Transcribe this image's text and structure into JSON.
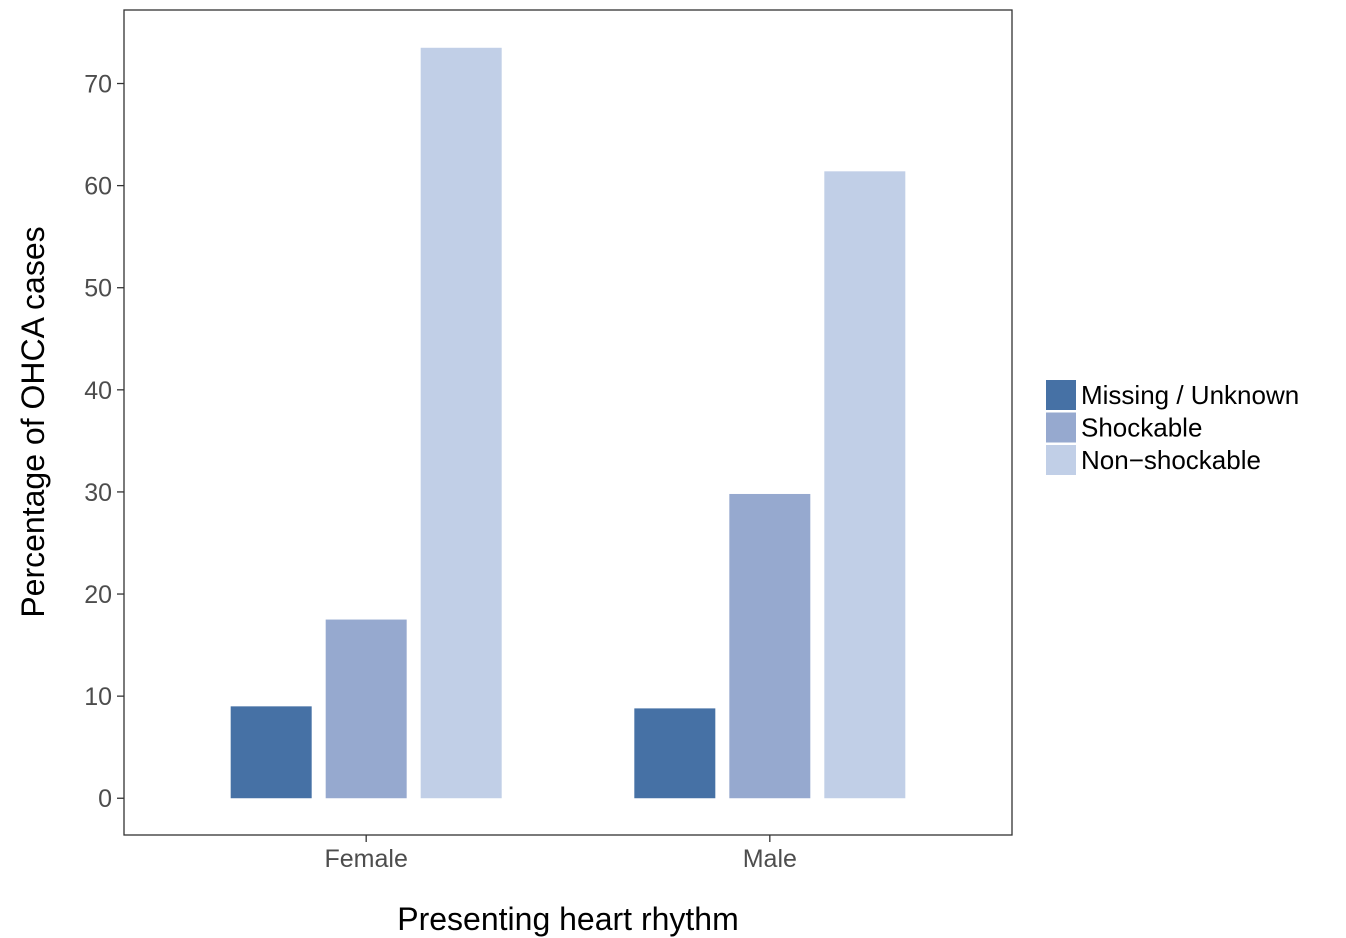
{
  "chart_data": {
    "type": "bar",
    "title": "",
    "xlabel": "Presenting heart rhythm",
    "ylabel": "Percentage of OHCA cases",
    "categories": [
      "Female",
      "Male"
    ],
    "series": [
      {
        "name": "Missing / Unknown",
        "color": "#4671a5",
        "values": [
          9.0,
          8.8
        ]
      },
      {
        "name": "Shockable",
        "color": "#96a9cf",
        "values": [
          17.5,
          29.8
        ]
      },
      {
        "name": "Non−shockable",
        "color": "#c1cfe7",
        "values": [
          73.5,
          61.4
        ]
      }
    ],
    "ylim": [
      -3.6,
      77.2
    ],
    "yticks": [
      0,
      10,
      20,
      30,
      40,
      50,
      60,
      70
    ],
    "grid": false,
    "legend_position": "right"
  }
}
